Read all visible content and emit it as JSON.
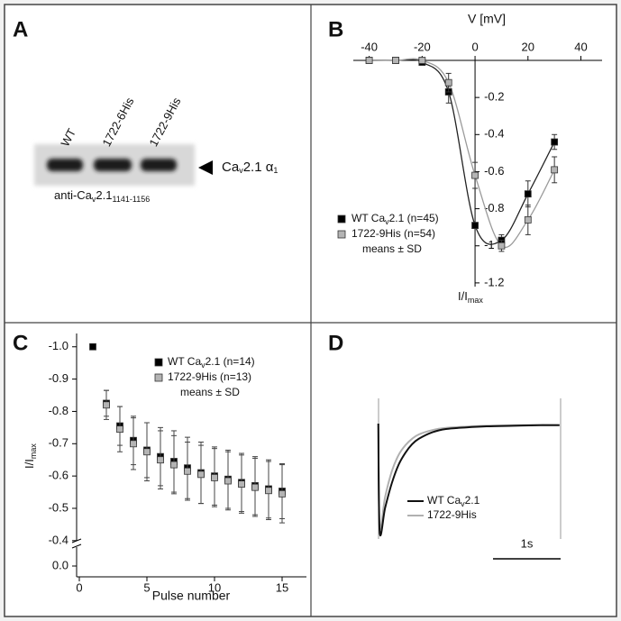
{
  "panel_labels": [
    "A",
    "B",
    "C",
    "D"
  ],
  "blot": {
    "lanes": [
      "WT",
      "1722-6His",
      "1722-9His"
    ],
    "band_label": [
      "Ca",
      "v",
      "2.1 α",
      "1"
    ],
    "antibody": [
      "anti-Ca",
      "v",
      "2.1",
      "1141-1156"
    ]
  },
  "chart_data": [
    {
      "type": "line",
      "x_label": "V [mV]",
      "y_label": [
        "I/I",
        "max"
      ],
      "x": [
        -40,
        -30,
        -20,
        -10,
        0,
        10,
        20,
        30
      ],
      "series": [
        {
          "name": [
            "WT Ca",
            "v",
            "2.1 (n=45)"
          ],
          "color": "#000000",
          "line_color": "#222222",
          "values": [
            0,
            0,
            -0.01,
            -0.17,
            -0.89,
            -0.97,
            -0.72,
            -0.44
          ],
          "errors": [
            null,
            null,
            null,
            0.06,
            null,
            0.03,
            0.07,
            0.04
          ]
        },
        {
          "name": [
            "1722-9His (n=54)"
          ],
          "color": "#b4b4b4",
          "line_color": "#9a9a9a",
          "values": [
            0,
            0,
            0,
            -0.12,
            -0.62,
            -1.0,
            -0.86,
            -0.59
          ],
          "errors": [
            null,
            null,
            null,
            0.05,
            0.07,
            0.03,
            0.08,
            0.07
          ]
        }
      ],
      "legend_note": "means ± SD",
      "xlim": [
        -46,
        48
      ],
      "xticks": [
        -40,
        -20,
        0,
        20,
        40
      ],
      "ylim": [
        -1.22,
        0
      ],
      "yticks": [
        -0.2,
        -0.4,
        -0.6,
        -0.8,
        -1,
        -1.2
      ]
    },
    {
      "type": "scatter",
      "x_label": "Pulse number",
      "y_label": [
        "I/I",
        "max"
      ],
      "x": [
        1,
        2,
        3,
        4,
        5,
        6,
        7,
        8,
        9,
        10,
        11,
        12,
        13,
        14,
        15
      ],
      "series": [
        {
          "name": [
            "WT Ca",
            "v",
            "2.1 (n=14)"
          ],
          "color": "#000000",
          "values": [
            -1.0,
            -0.825,
            -0.755,
            -0.71,
            -0.68,
            -0.66,
            -0.645,
            -0.625,
            -0.61,
            -0.6,
            -0.59,
            -0.58,
            -0.57,
            -0.56,
            -0.553
          ],
          "errors": [
            null,
            0.04,
            0.06,
            0.075,
            0.085,
            0.09,
            0.095,
            0.095,
            0.095,
            0.09,
            0.09,
            0.09,
            0.09,
            0.09,
            0.085
          ]
        },
        {
          "name": [
            "1722-9His (n=13)"
          ],
          "color": "#b4b4b4",
          "values": [
            null,
            -0.82,
            -0.745,
            -0.7,
            -0.675,
            -0.65,
            -0.635,
            -0.615,
            -0.605,
            -0.595,
            -0.585,
            -0.575,
            -0.565,
            -0.555,
            -0.545
          ],
          "errors": [
            null,
            0.045,
            0.07,
            0.08,
            0.09,
            0.09,
            0.09,
            0.09,
            0.09,
            0.09,
            0.09,
            0.09,
            0.09,
            0.09,
            0.09
          ]
        }
      ],
      "legend_note": "means ± SD",
      "axis_break": true,
      "xlim": [
        -0.2,
        16.8
      ],
      "xticks": [
        0,
        5,
        10,
        15
      ],
      "ylim": [
        -1.03,
        -0.38
      ],
      "yticks": [
        {
          "value": -1,
          "label": "-1.0"
        },
        -0.9,
        -0.8,
        -0.7,
        -0.6,
        -0.5,
        -0.4,
        {
          "value": 0,
          "label": "0.0"
        }
      ]
    },
    {
      "type": "line",
      "x": [
        0,
        0.02,
        0.1,
        0.2,
        0.3,
        0.4,
        0.5,
        0.6,
        0.8,
        1.0,
        1.3,
        1.6,
        2.0,
        2.4,
        2.68
      ],
      "series": [
        {
          "name": [
            "WT Ca",
            "v",
            "2.1"
          ],
          "color": "#111111",
          "values": [
            0,
            -1,
            -0.78,
            -0.55,
            -0.38,
            -0.27,
            -0.19,
            -0.14,
            -0.08,
            -0.05,
            -0.035,
            -0.025,
            -0.02,
            -0.015,
            -0.015
          ]
        },
        {
          "name": [
            "1722-9His"
          ],
          "color": "#b0b0b0",
          "values": [
            0,
            -0.95,
            -0.68,
            -0.44,
            -0.29,
            -0.2,
            -0.14,
            -0.1,
            -0.06,
            -0.04,
            -0.028,
            -0.02,
            -0.015,
            -0.012,
            -0.012
          ]
        }
      ],
      "scalebar": {
        "value": 1,
        "label": "1s"
      },
      "xlim": [
        -0.05,
        2.75
      ],
      "ylim": [
        -1.05,
        0.15
      ]
    }
  ]
}
